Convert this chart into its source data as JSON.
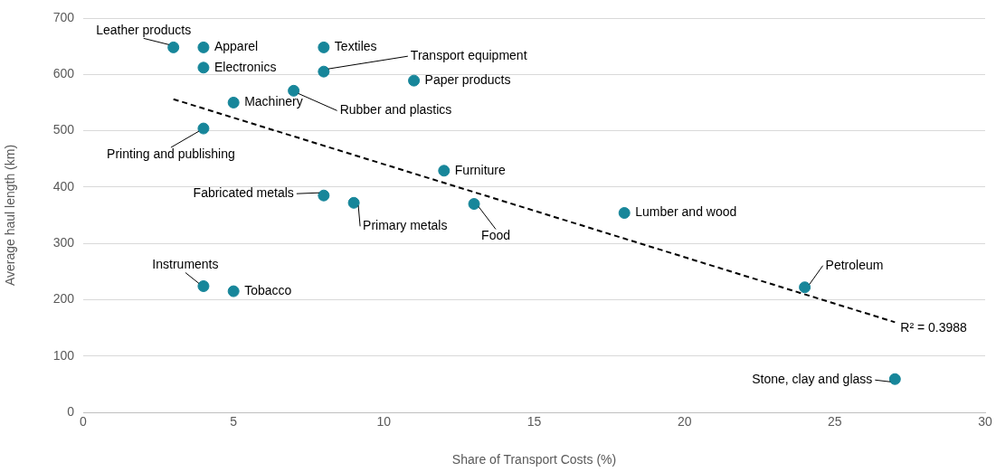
{
  "chart_data": {
    "type": "scatter",
    "xlabel": "Share of Transport Costs (%)",
    "ylabel": "Average haul length (km)",
    "xlim": [
      0,
      30
    ],
    "xticks": [
      0,
      5,
      10,
      15,
      20,
      25,
      30
    ],
    "ylim": [
      0,
      700
    ],
    "yticks": [
      0,
      100,
      200,
      300,
      400,
      500,
      600,
      700
    ],
    "grid": "y",
    "series": [
      {
        "marker": "circle",
        "color": "#17869a",
        "x": [
          3,
          4,
          8,
          4,
          8,
          11,
          7,
          5,
          4,
          12,
          8,
          9,
          13,
          18,
          24,
          4,
          5,
          27
        ],
        "values": [
          648,
          648,
          648,
          612,
          605,
          589,
          571,
          550,
          504,
          429,
          385,
          372,
          370,
          354,
          222,
          224,
          215,
          59
        ]
      },
      {
        "type": "line",
        "marker": "none",
        "color": "#000000",
        "line_style": "dashed",
        "x": [
          3,
          27
        ],
        "values": [
          556,
          160
        ]
      }
    ],
    "annotations": [
      {
        "text": "Leather products",
        "x": 3,
        "y": 648
      },
      {
        "text": "Apparel",
        "x": 4,
        "y": 648
      },
      {
        "text": "Textiles",
        "x": 8,
        "y": 648
      },
      {
        "text": "Electronics",
        "x": 4,
        "y": 612
      },
      {
        "text": "Transport equipment",
        "x": 8,
        "y": 605
      },
      {
        "text": "Paper products",
        "x": 11,
        "y": 589
      },
      {
        "text": "Rubber and plastics",
        "x": 7,
        "y": 571
      },
      {
        "text": "Machinery",
        "x": 5,
        "y": 550
      },
      {
        "text": "Printing and publishing",
        "x": 4,
        "y": 504
      },
      {
        "text": "Furniture",
        "x": 12,
        "y": 429
      },
      {
        "text": "Fabricated metals",
        "x": 8,
        "y": 385
      },
      {
        "text": "Primary metals",
        "x": 9,
        "y": 372
      },
      {
        "text": "Food",
        "x": 13,
        "y": 370
      },
      {
        "text": "Lumber and wood",
        "x": 18,
        "y": 354
      },
      {
        "text": "Petroleum",
        "x": 24,
        "y": 222
      },
      {
        "text": "Instruments",
        "x": 4,
        "y": 224
      },
      {
        "text": "Tobacco",
        "x": 5,
        "y": 215
      },
      {
        "text": "Stone, clay and glass",
        "x": 27,
        "y": 59
      },
      {
        "text": "R² = 0.3988",
        "x": 27,
        "y": 160
      }
    ]
  }
}
